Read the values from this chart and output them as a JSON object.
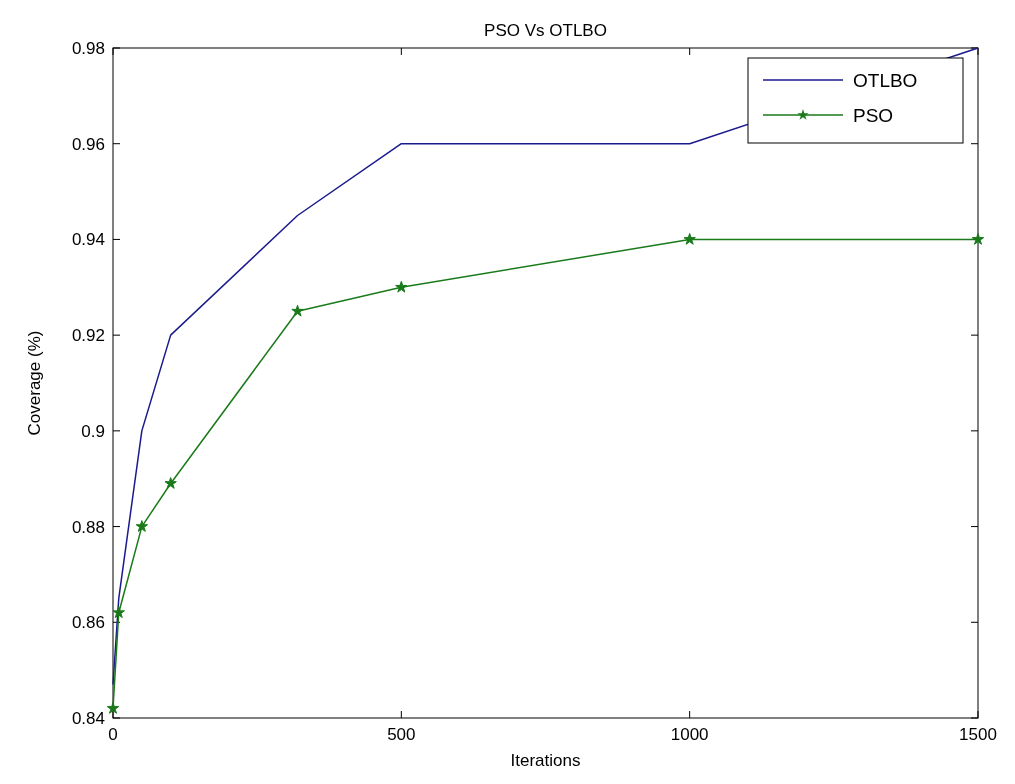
{
  "chart_data": {
    "type": "line",
    "title": "PSO Vs OTLBO",
    "xlabel": "Iterations",
    "ylabel": "Coverage (%)",
    "xlim": [
      0,
      1500
    ],
    "xticks": [
      0,
      500,
      1000,
      1500
    ],
    "ylim": [
      0.84,
      0.98
    ],
    "yticks": [
      0.84,
      0.86,
      0.88,
      0.9,
      0.92,
      0.94,
      0.96,
      0.98
    ],
    "legend": "top right",
    "grid": false,
    "series": [
      {
        "name": "OTLBO",
        "color": "#1a1a8c",
        "marker": "none",
        "x": [
          0,
          10,
          50,
          100,
          320,
          500,
          1000,
          1500
        ],
        "values": [
          0.847,
          0.865,
          0.9,
          0.92,
          0.945,
          0.96,
          0.96,
          0.98
        ]
      },
      {
        "name": "PSO",
        "color": "#1a7a1a",
        "marker": "star",
        "x": [
          0,
          10,
          50,
          100,
          320,
          500,
          1000,
          1500
        ],
        "values": [
          0.842,
          0.862,
          0.88,
          0.889,
          0.925,
          0.93,
          0.94,
          0.94
        ]
      }
    ]
  }
}
